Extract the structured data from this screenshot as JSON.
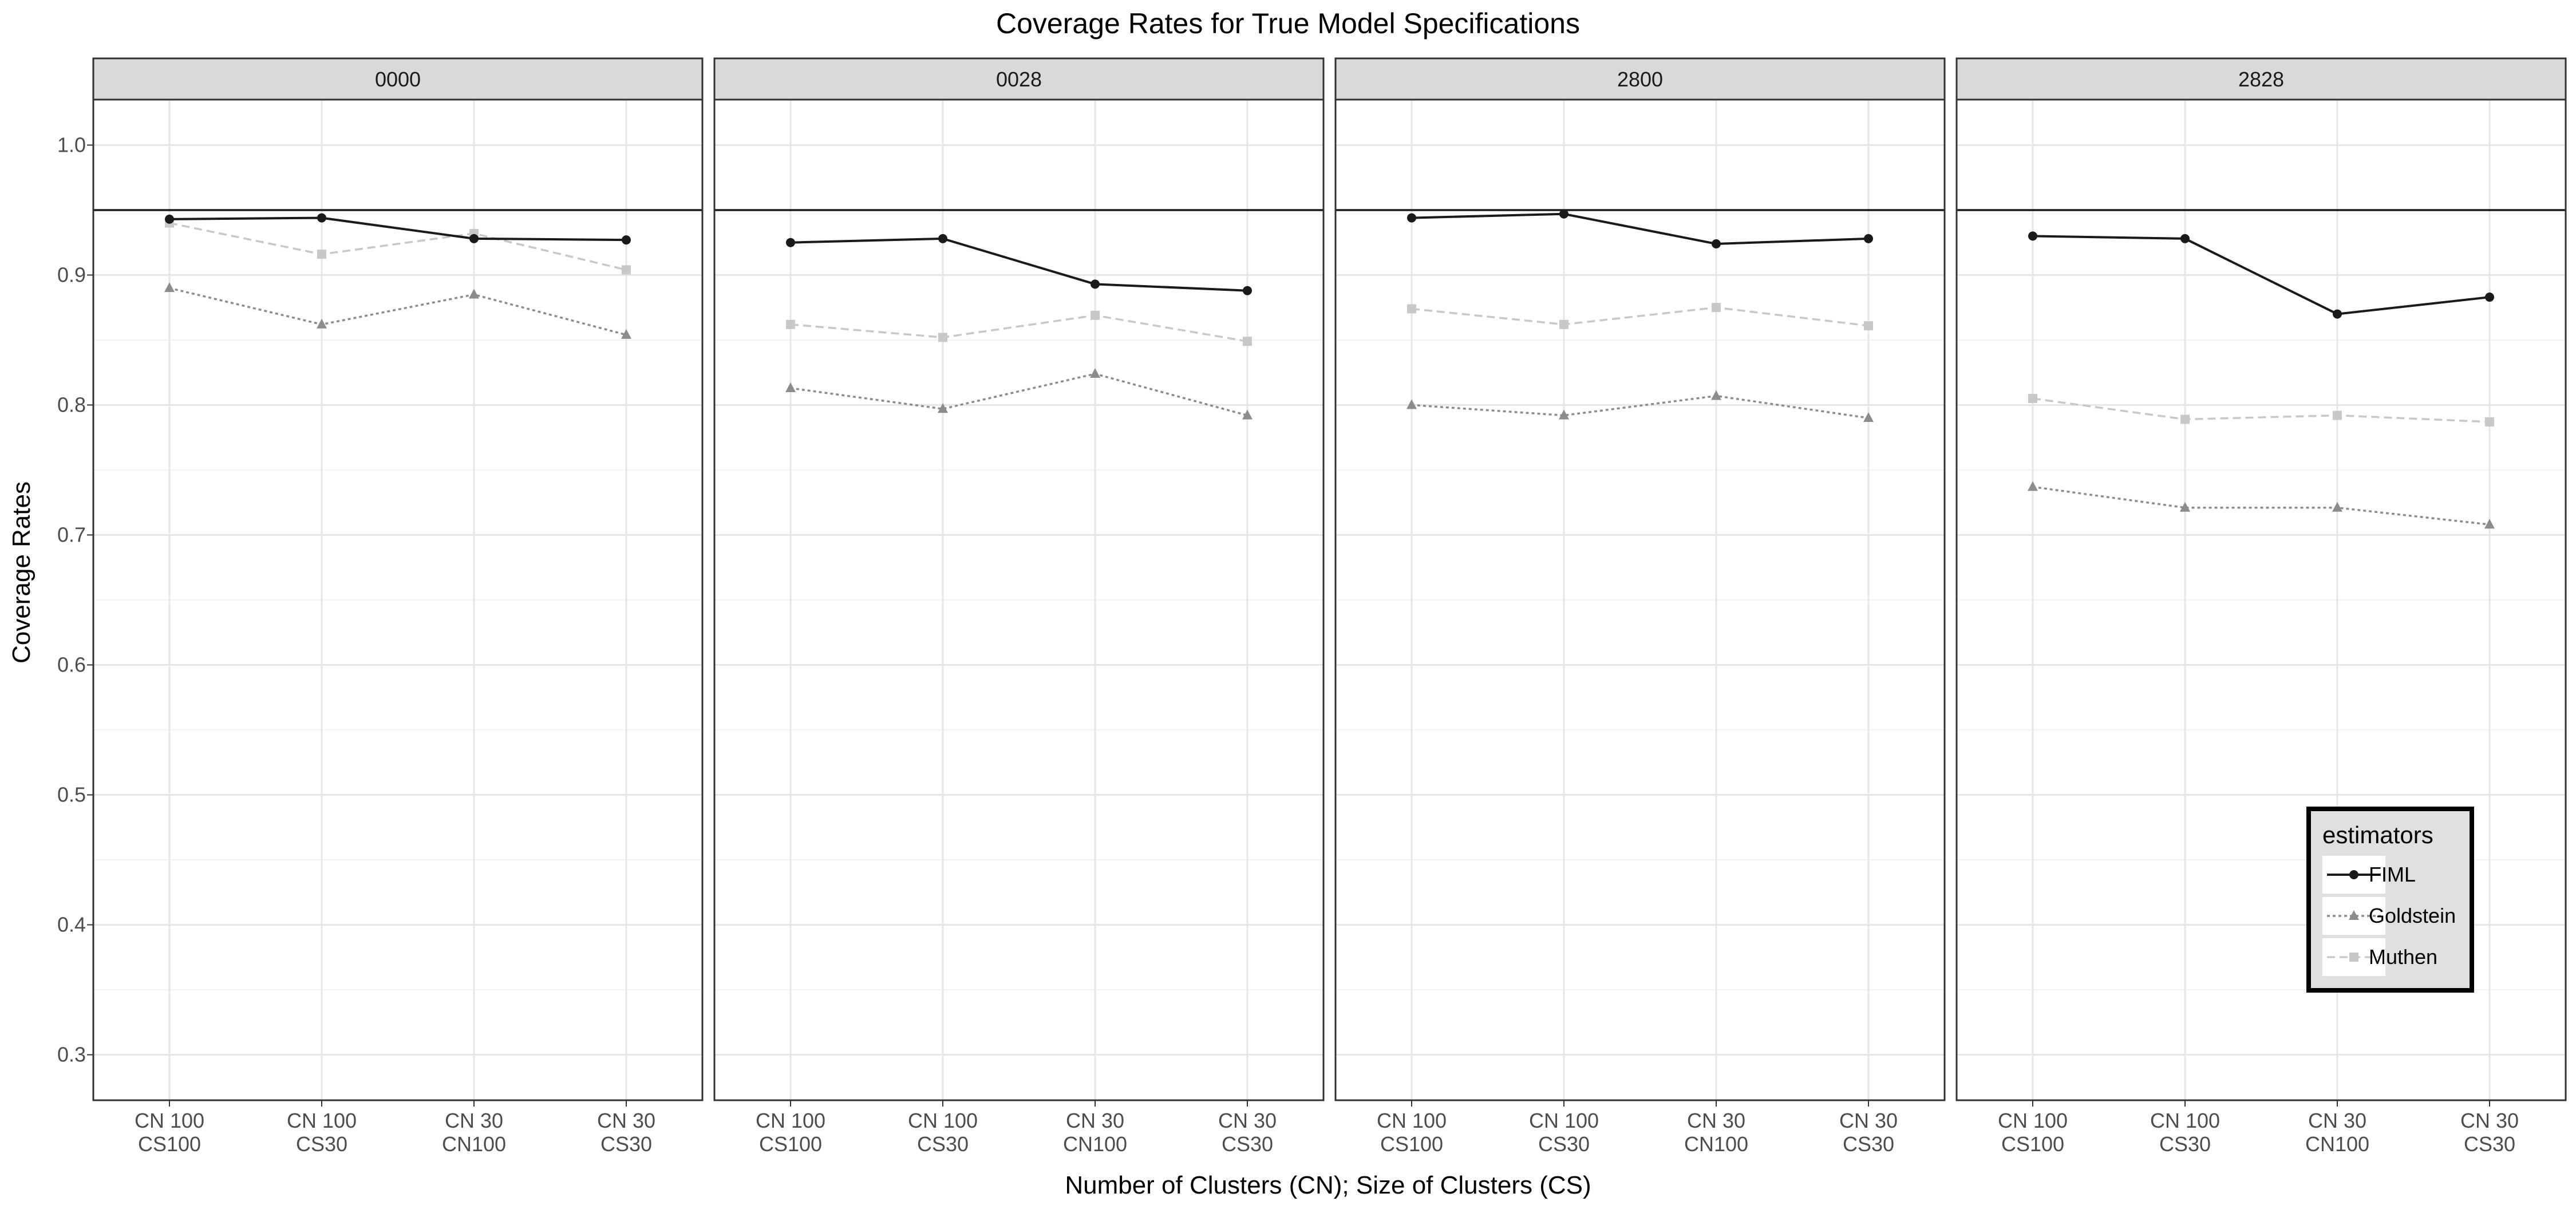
{
  "chart_data": {
    "type": "line",
    "title": "Coverage Rates for True Model Specifications",
    "xlabel": "Number of Clusters (CN); Size of Clusters (CS)",
    "ylabel": "Coverage Rates",
    "ylim": [
      0.265,
      1.035
    ],
    "yticks": [
      "0.3",
      "0.4",
      "0.5",
      "0.6",
      "0.7",
      "0.8",
      "0.9",
      "1.0"
    ],
    "reference_line": 0.95,
    "categories": [
      [
        "CN 100",
        "CS100"
      ],
      [
        "CN 100",
        "CS30"
      ],
      [
        "CN 30",
        "CN100"
      ],
      [
        "CN 30",
        "CS30"
      ]
    ],
    "grid": true,
    "legend": {
      "title": "estimators",
      "placement": "inside-bottom-right of last panel",
      "entries": [
        "FIML",
        "Goldstein",
        "Muthen"
      ]
    },
    "colors": {
      "FIML": "#1a1a1a",
      "Goldstein": "#8c8c8c",
      "Muthen": "#c8c8c8"
    },
    "panels": [
      {
        "label": "0000",
        "series": [
          {
            "name": "FIML",
            "values": [
              0.943,
              0.944,
              0.928,
              0.927
            ]
          },
          {
            "name": "Goldstein",
            "values": [
              0.89,
              0.862,
              0.885,
              0.854
            ]
          },
          {
            "name": "Muthen",
            "values": [
              0.94,
              0.916,
              0.932,
              0.904
            ]
          }
        ]
      },
      {
        "label": "0028",
        "series": [
          {
            "name": "FIML",
            "values": [
              0.925,
              0.928,
              0.893,
              0.888
            ]
          },
          {
            "name": "Goldstein",
            "values": [
              0.813,
              0.797,
              0.824,
              0.792
            ]
          },
          {
            "name": "Muthen",
            "values": [
              0.862,
              0.852,
              0.869,
              0.849
            ]
          }
        ]
      },
      {
        "label": "2800",
        "series": [
          {
            "name": "FIML",
            "values": [
              0.944,
              0.947,
              0.924,
              0.928
            ]
          },
          {
            "name": "Goldstein",
            "values": [
              0.8,
              0.792,
              0.807,
              0.79
            ]
          },
          {
            "name": "Muthen",
            "values": [
              0.874,
              0.862,
              0.875,
              0.861
            ]
          }
        ]
      },
      {
        "label": "2828",
        "series": [
          {
            "name": "FIML",
            "values": [
              0.93,
              0.928,
              0.87,
              0.883
            ]
          },
          {
            "name": "Goldstein",
            "values": [
              0.737,
              0.721,
              0.721,
              0.708
            ]
          },
          {
            "name": "Muthen",
            "values": [
              0.805,
              0.789,
              0.792,
              0.787
            ]
          }
        ]
      }
    ]
  }
}
